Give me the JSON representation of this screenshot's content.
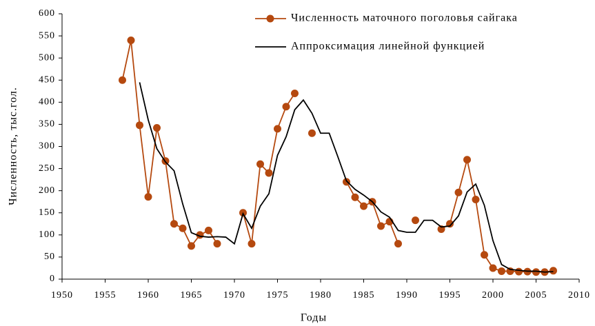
{
  "chart_data": {
    "type": "line",
    "xlabel": "Годы",
    "ylabel": "Численность, тыс.гол.",
    "x": [
      1957,
      1958,
      1959,
      1960,
      1961,
      1962,
      1963,
      1964,
      1965,
      1966,
      1967,
      1968,
      1969,
      1970,
      1971,
      1972,
      1973,
      1974,
      1975,
      1976,
      1977,
      1978,
      1979,
      1980,
      1981,
      1982,
      1983,
      1984,
      1985,
      1986,
      1987,
      1988,
      1989,
      1990,
      1991,
      1992,
      1993,
      1994,
      1995,
      1996,
      1997,
      1998,
      1999,
      2000,
      2001,
      2002,
      2003,
      2004,
      2005,
      2006,
      2007
    ],
    "series": [
      {
        "name": "Численность маточного поголовья сайгака",
        "color": "#b5490f",
        "markers": true,
        "values": [
          450,
          540,
          348,
          186,
          342,
          267,
          125,
          115,
          75,
          100,
          110,
          80,
          null,
          null,
          150,
          80,
          260,
          240,
          340,
          390,
          420,
          null,
          330,
          null,
          null,
          null,
          220,
          185,
          165,
          175,
          120,
          130,
          80,
          null,
          133,
          null,
          null,
          113,
          125,
          196,
          270,
          180,
          55,
          25,
          18,
          18,
          17,
          17,
          16,
          16,
          19
        ]
      },
      {
        "name": "Аппроксимация линейной функцией",
        "color": "#000000",
        "markers": false,
        "values": [
          null,
          null,
          445,
          360,
          295,
          265,
          245,
          170,
          105,
          97,
          95,
          96,
          95,
          80,
          148,
          115,
          165,
          193,
          280,
          322,
          383,
          405,
          375,
          330,
          330,
          277,
          222,
          203,
          190,
          175,
          152,
          140,
          110,
          106,
          106,
          133,
          133,
          118,
          120,
          143,
          197,
          215,
          167,
          87,
          33,
          22,
          20,
          18,
          18,
          16,
          17
        ]
      }
    ],
    "xlim": [
      1950,
      2010
    ],
    "xticks": [
      1950,
      1955,
      1960,
      1965,
      1970,
      1975,
      1980,
      1985,
      1990,
      1995,
      2000,
      2005,
      2010
    ],
    "ylim": [
      0,
      600
    ],
    "yticks": [
      0,
      50,
      100,
      150,
      200,
      250,
      300,
      350,
      400,
      450,
      500,
      550,
      600
    ],
    "grid": false,
    "legend": "top-right"
  }
}
